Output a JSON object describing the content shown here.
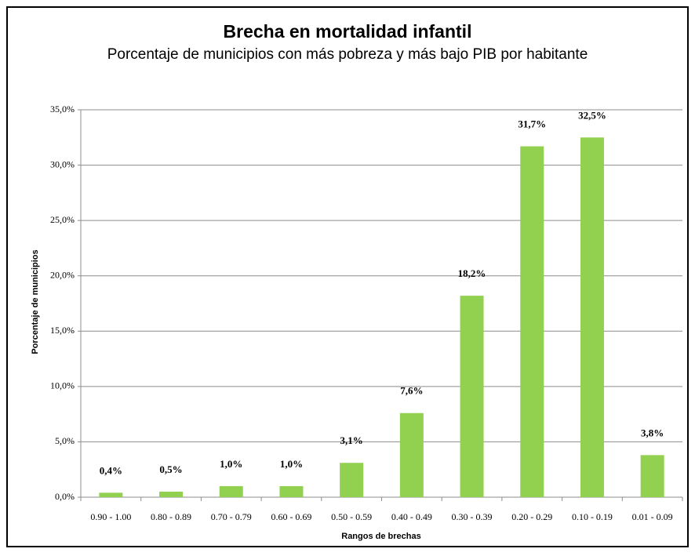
{
  "chart_data": {
    "type": "bar",
    "title": "Brecha en mortalidad infantil",
    "subtitle": "Porcentaje de municipios con más pobreza y más bajo PIB por habitante",
    "y_label": "Porcentaje de municipios",
    "x_label": "Rangos de brechas",
    "categories": [
      "0.90 - 1.00",
      "0.80 - 0.89",
      "0.70 - 0.79",
      "0.60 - 0.69",
      "0.50 - 0.59",
      "0.40 - 0.49",
      "0.30 - 0.39",
      "0.20 - 0.29",
      "0.10 - 0.19",
      "0.01 - 0.09"
    ],
    "values": [
      0.4,
      0.5,
      1.0,
      1.0,
      3.1,
      7.6,
      18.2,
      31.7,
      32.5,
      3.8
    ],
    "value_labels": [
      "0,4%",
      "0,5%",
      "1,0%",
      "1,0%",
      "3,1%",
      "7,6%",
      "18,2%",
      "31,7%",
      "32,5%",
      "3,8%"
    ],
    "color": "#92d050",
    "ylim": [
      0,
      35
    ],
    "yticks": [
      {
        "value": 0,
        "label": "0,0%"
      },
      {
        "value": 5,
        "label": "5,0%"
      },
      {
        "value": 10,
        "label": "10,0%"
      },
      {
        "value": 15,
        "label": "15,0%"
      },
      {
        "value": 20,
        "label": "20,0%"
      },
      {
        "value": 25,
        "label": "25,0%"
      },
      {
        "value": 30,
        "label": "30,0%"
      },
      {
        "value": 35,
        "label": "35,0%"
      }
    ],
    "grid": true
  }
}
